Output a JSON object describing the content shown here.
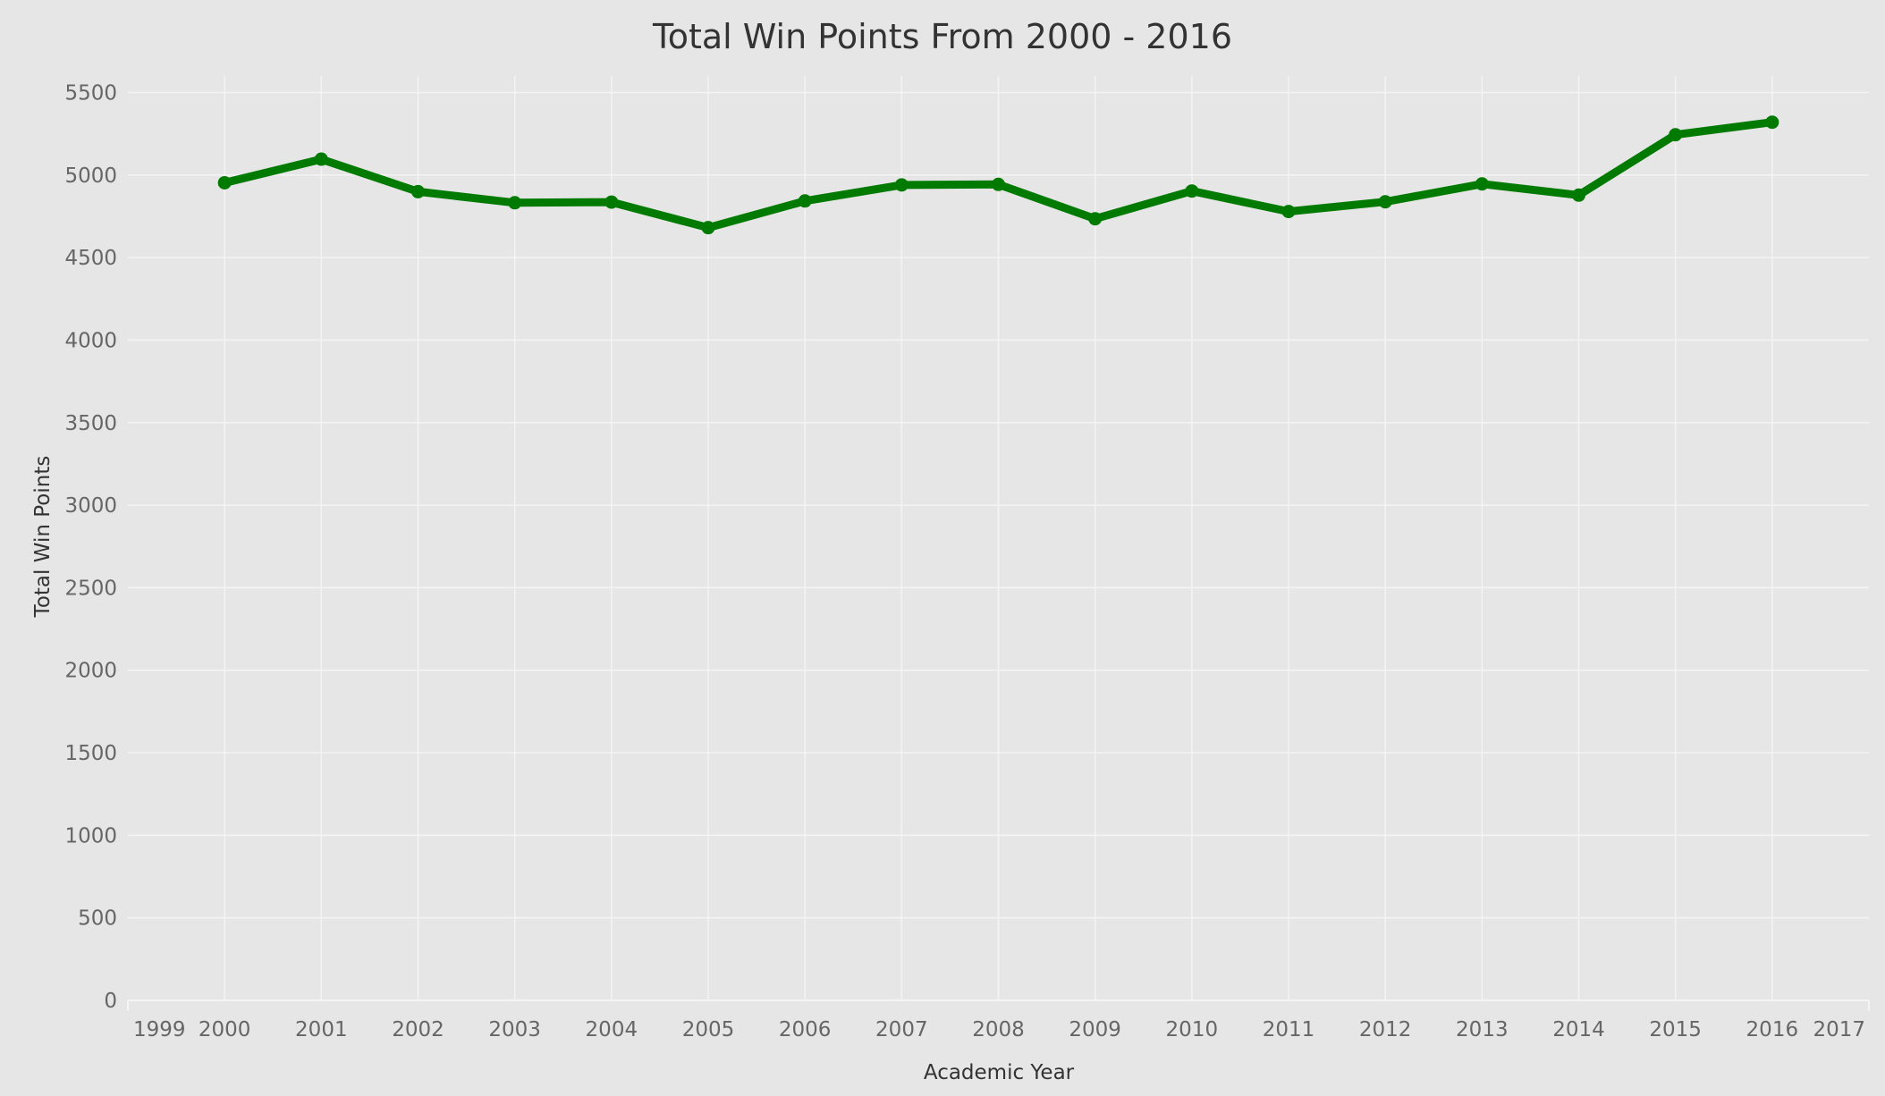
{
  "chart_data": {
    "type": "line",
    "title": "Total Win Points From 2000 - 2016",
    "xlabel": "Academic Year",
    "ylabel": "Total Win Points",
    "x_ticks": [
      1999,
      2000,
      2001,
      2002,
      2003,
      2004,
      2005,
      2006,
      2007,
      2008,
      2009,
      2010,
      2011,
      2012,
      2013,
      2014,
      2015,
      2016,
      2017
    ],
    "y_ticks": [
      0,
      500,
      1000,
      1500,
      2000,
      2500,
      3000,
      3500,
      4000,
      4500,
      5000,
      5500
    ],
    "xlim": [
      1999,
      2017
    ],
    "ylim": [
      0,
      5600
    ],
    "grid": true,
    "series": [
      {
        "color": "#007a00",
        "x": [
          2000,
          2001,
          2002,
          2003,
          2004,
          2005,
          2006,
          2007,
          2008,
          2009,
          2010,
          2011,
          2012,
          2013,
          2014,
          2015,
          2016
        ],
        "values": [
          4953,
          5096,
          4899,
          4832,
          4836,
          4681,
          4843,
          4940,
          4943,
          4735,
          4903,
          4779,
          4838,
          4946,
          4878,
          5244,
          5320
        ]
      }
    ]
  }
}
